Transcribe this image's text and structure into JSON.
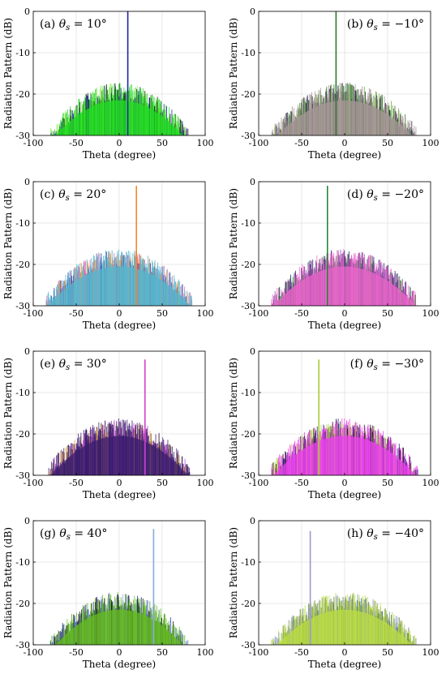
{
  "chart_data": [
    {
      "type": "area",
      "label_prefix": "(a)",
      "label_symbol": "θ",
      "label_sub": "s",
      "label_value": "= 10°",
      "xlabel": "Theta (degree)",
      "ylabel": "Radiation Pattern (dB)",
      "xlim": [
        -100,
        100
      ],
      "ylim": [
        -30,
        0
      ],
      "xticks": [
        "-100",
        "-50",
        "0",
        "50",
        "100"
      ],
      "yticks": [
        "0",
        "-10",
        "-20",
        "-30"
      ],
      "grid": true,
      "steer_angle": 10,
      "peak_db": 0,
      "sidelobe_peak_db": -19,
      "support_deg": 80,
      "colors": [
        "#22dd22",
        "#33cc33",
        "#111111",
        "#2222aa",
        "#88ee44"
      ]
    },
    {
      "type": "area",
      "label_prefix": "(b)",
      "label_symbol": "θ",
      "label_sub": "s",
      "label_value": "= −10°",
      "xlabel": "Theta (degree)",
      "ylabel": "Radiation Pattern (dB)",
      "xlim": [
        -100,
        100
      ],
      "ylim": [
        -30,
        0
      ],
      "xticks": [
        "-100",
        "-50",
        "0",
        "50",
        "100"
      ],
      "yticks": [
        "0",
        "-10",
        "-20",
        "-30"
      ],
      "grid": true,
      "steer_angle": -10,
      "peak_db": 0,
      "sidelobe_peak_db": -19,
      "support_deg": 85,
      "colors": [
        "#a89898",
        "#9a8a8a",
        "#222244",
        "#2d7a2d",
        "#66aa33"
      ]
    },
    {
      "type": "area",
      "label_prefix": "(c)",
      "label_symbol": "θ",
      "label_sub": "s",
      "label_value": "= 20°",
      "xlabel": "Theta (degree)",
      "ylabel": "Radiation Pattern (dB)",
      "xlim": [
        -100,
        100
      ],
      "ylim": [
        -30,
        0
      ],
      "xticks": [
        "-100",
        "-50",
        "0",
        "50",
        "100"
      ],
      "yticks": [
        "0",
        "-10",
        "-20",
        "-30"
      ],
      "grid": true,
      "steer_angle": 20,
      "peak_db": -1,
      "sidelobe_peak_db": -18,
      "support_deg": 85,
      "colors": [
        "#55b8d0",
        "#4aa8cc",
        "#2233aa",
        "#ee8833",
        "#dd66aa"
      ]
    },
    {
      "type": "area",
      "label_prefix": "(d)",
      "label_symbol": "θ",
      "label_sub": "s",
      "label_value": "= −20°",
      "xlabel": "Theta (degree)",
      "ylabel": "Radiation Pattern (dB)",
      "xlim": [
        -100,
        100
      ],
      "ylim": [
        -30,
        0
      ],
      "xticks": [
        "-100",
        "-50",
        "0",
        "50",
        "100"
      ],
      "yticks": [
        "0",
        "-10",
        "-20",
        "-30"
      ],
      "grid": true,
      "steer_angle": -20,
      "peak_db": -1,
      "sidelobe_peak_db": -18,
      "support_deg": 85,
      "colors": [
        "#ee66cc",
        "#dd55bb",
        "#222266",
        "#228833",
        "#8844aa"
      ]
    },
    {
      "type": "area",
      "label_prefix": "(e)",
      "label_symbol": "θ",
      "label_sub": "s",
      "label_value": "= 30°",
      "xlabel": "Theta (degree)",
      "ylabel": "Radiation Pattern (dB)",
      "xlim": [
        -100,
        100
      ],
      "ylim": [
        -30,
        0
      ],
      "xticks": [
        "-100",
        "-50",
        "0",
        "50",
        "100"
      ],
      "yticks": [
        "0",
        "-10",
        "-20",
        "-30"
      ],
      "grid": true,
      "steer_angle": 30,
      "peak_db": -2,
      "sidelobe_peak_db": -18,
      "support_deg": 82,
      "colors": [
        "#3a1d6e",
        "#2e1a5e",
        "#552288",
        "#cc44cc",
        "#ddaa33"
      ]
    },
    {
      "type": "area",
      "label_prefix": "(f)",
      "label_symbol": "θ",
      "label_sub": "s",
      "label_value": "= −30°",
      "xlabel": "Theta (degree)",
      "ylabel": "Radiation Pattern (dB)",
      "xlim": [
        -100,
        100
      ],
      "ylim": [
        -30,
        0
      ],
      "xticks": [
        "-100",
        "-50",
        "0",
        "50",
        "100"
      ],
      "yticks": [
        "0",
        "-10",
        "-20",
        "-30"
      ],
      "grid": true,
      "steer_angle": -30,
      "peak_db": -2,
      "sidelobe_peak_db": -18,
      "support_deg": 85,
      "colors": [
        "#ee44ee",
        "#dd33dd",
        "#222288",
        "#aacc33",
        "#111111"
      ]
    },
    {
      "type": "area",
      "label_prefix": "(g)",
      "label_symbol": "θ",
      "label_sub": "s",
      "label_value": "= 40°",
      "xlabel": "Theta (degree)",
      "ylabel": "Radiation Pattern (dB)",
      "xlim": [
        -100,
        100
      ],
      "ylim": [
        -30,
        0
      ],
      "xticks": [
        "-100",
        "-50",
        "0",
        "50",
        "100"
      ],
      "yticks": [
        "0",
        "-10",
        "-20",
        "-30"
      ],
      "grid": true,
      "steer_angle": 40,
      "peak_db": -2,
      "sidelobe_peak_db": -19,
      "support_deg": 80,
      "colors": [
        "#66bb22",
        "#55aa22",
        "#2233aa",
        "#88aadd",
        "#111111"
      ]
    },
    {
      "type": "area",
      "label_prefix": "(h)",
      "label_symbol": "θ",
      "label_sub": "s",
      "label_value": "= −40°",
      "xlabel": "Theta (degree)",
      "ylabel": "Radiation Pattern (dB)",
      "xlim": [
        -100,
        100
      ],
      "ylim": [
        -30,
        0
      ],
      "xticks": [
        "-100",
        "-50",
        "0",
        "50",
        "100"
      ],
      "yticks": [
        "0",
        "-10",
        "-20",
        "-30"
      ],
      "grid": true,
      "steer_angle": -40,
      "peak_db": -2.5,
      "sidelobe_peak_db": -19,
      "support_deg": 85,
      "colors": [
        "#bbdd44",
        "#aacc33",
        "#557733",
        "#9999cc",
        "#6688aa"
      ]
    }
  ]
}
